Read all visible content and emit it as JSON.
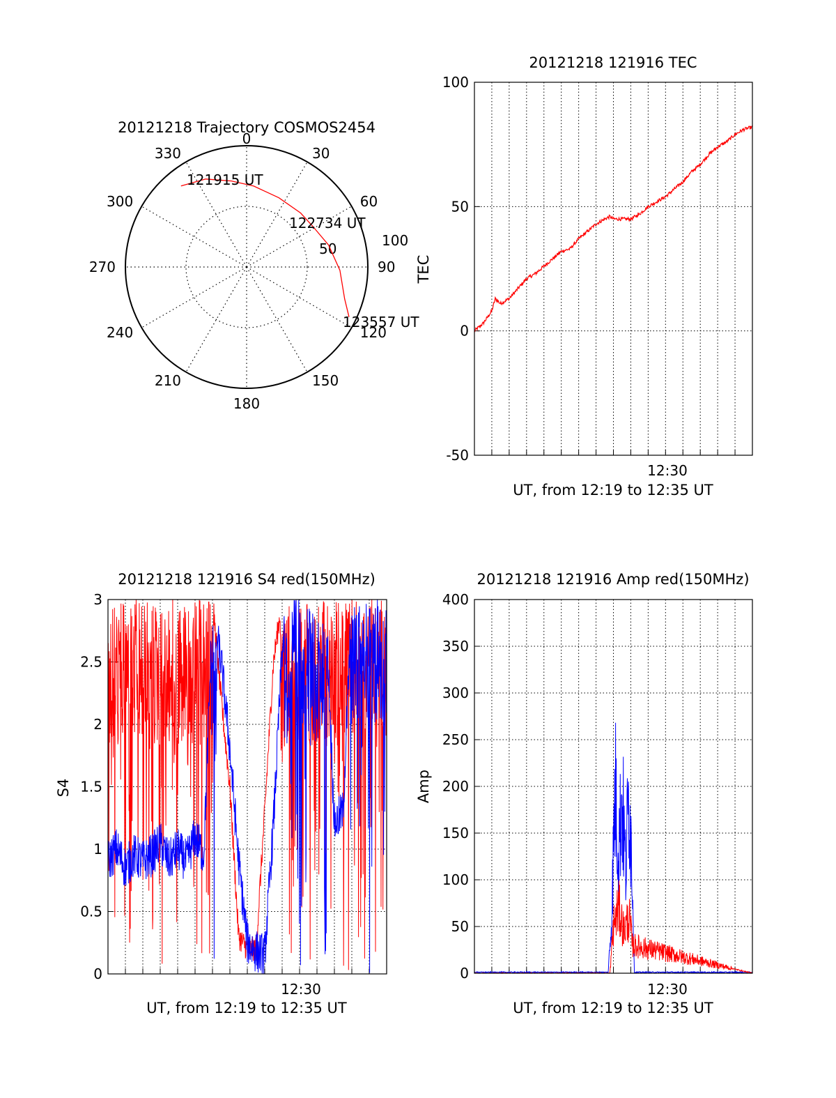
{
  "chart_data": [
    {
      "type": "polar",
      "title": "20121218 Trajectory COSMOS2454",
      "angle_labels": [
        "0",
        "30",
        "60",
        "90",
        "120",
        "150",
        "180",
        "210",
        "240",
        "270",
        "300",
        "330"
      ],
      "radial_labels": [
        "50",
        "100"
      ],
      "radial_range": [
        0,
        100
      ],
      "grid": true,
      "trajectory": [
        {
          "az": 321,
          "elev": 14
        },
        {
          "az": 335,
          "elev": 20
        },
        {
          "az": 350,
          "elev": 28
        },
        {
          "az": 5,
          "elev": 33
        },
        {
          "az": 25,
          "elev": 37
        },
        {
          "az": 45,
          "elev": 37
        },
        {
          "az": 58,
          "elev": 36
        },
        {
          "az": 75,
          "elev": 30
        },
        {
          "az": 92,
          "elev": 23
        },
        {
          "az": 108,
          "elev": 15
        },
        {
          "az": 116,
          "elev": 6
        }
      ],
      "annotations": [
        "121915 UT",
        "122734 UT",
        "123557 UT"
      ],
      "line_color": "#ff0000"
    },
    {
      "type": "line",
      "title": "20121218 121916 TEC",
      "xlabel": "UT, from 12:19 to 12:35 UT",
      "ylabel": "TEC",
      "xlim": [
        0,
        16
      ],
      "ylim": [
        -50,
        100
      ],
      "yticks": [
        "100",
        "50",
        "0",
        "-50"
      ],
      "xtick_labels": [
        "12:30"
      ],
      "grid": true,
      "series": [
        {
          "color": "#ff0000",
          "x": [
            0,
            0.5,
            1,
            1.2,
            1.5,
            2,
            2.5,
            3,
            3.5,
            4,
            4.5,
            5,
            5.5,
            6,
            6.5,
            7,
            7.5,
            7.8,
            8,
            8.5,
            9,
            9.5,
            10,
            10.5,
            11,
            11.5,
            12,
            12.5,
            13,
            13.5,
            14,
            14.5,
            15,
            15.5,
            16
          ],
          "y": [
            0,
            3,
            8,
            13,
            11,
            13,
            17,
            21,
            23,
            26,
            29,
            32,
            33,
            37,
            40,
            43,
            45,
            46,
            45,
            45,
            45,
            47,
            50,
            52,
            54,
            57,
            60,
            64,
            67,
            71,
            74,
            76,
            79,
            81,
            82
          ]
        }
      ]
    },
    {
      "type": "line",
      "title": "20121218 121916 S4 red(150MHz)",
      "xlabel": "UT, from 12:19 to 12:35 UT",
      "ylabel": "S4",
      "xlim": [
        0,
        16
      ],
      "ylim": [
        0,
        3
      ],
      "yticks": [
        "3",
        "2.5",
        "2",
        "1.5",
        "1",
        "0.5",
        "0"
      ],
      "xtick_labels": [
        "12:30"
      ],
      "grid": true,
      "series": [
        {
          "color": "#ff0000",
          "x": [
            0,
            0.5,
            1,
            1.5,
            2,
            2.5,
            3,
            3.5,
            4,
            4.5,
            5,
            5.5,
            6,
            6.5,
            7,
            7.5,
            8,
            8.5,
            9,
            9.5,
            10,
            10.5,
            11,
            11.5,
            12,
            12.5,
            13,
            13.5,
            14,
            14.5,
            15,
            15.5,
            16
          ],
          "y": [
            3,
            3,
            3,
            3,
            3,
            3,
            3,
            3,
            3,
            3,
            3,
            3,
            3,
            2.2,
            1.5,
            0.3,
            0.2,
            0.2,
            1.3,
            2.5,
            3,
            3,
            3,
            3,
            3,
            3,
            3,
            3,
            3,
            3,
            3,
            3,
            3
          ],
          "fill_range": [
            0,
            3
          ]
        },
        {
          "color": "#0000ff",
          "x": [
            0,
            0.5,
            1,
            1.5,
            2,
            2.5,
            3,
            3.5,
            4,
            4.5,
            5,
            5.5,
            6,
            6.5,
            7,
            7.5,
            8,
            8.5,
            9,
            9.5,
            10,
            10.5,
            11,
            11.5,
            12,
            12.5,
            13,
            13.5,
            14,
            14.5,
            15,
            15.5,
            16
          ],
          "y": [
            0.9,
            1.0,
            0.85,
            0.95,
            0.9,
            0.95,
            1.05,
            0.9,
            1.0,
            0.9,
            1.1,
            0.95,
            2.9,
            2.5,
            1.8,
            0.9,
            0.25,
            0.18,
            0.15,
            1.2,
            2.6,
            3,
            3,
            3,
            2.8,
            3,
            1.2,
            1.3,
            3,
            3,
            3,
            3,
            3
          ]
        }
      ]
    },
    {
      "type": "line",
      "title": "20121218 121916 Amp red(150MHz)",
      "xlabel": "UT, from 12:19 to 12:35 UT",
      "ylabel": "Amp",
      "xlim": [
        0,
        16
      ],
      "ylim": [
        0,
        400
      ],
      "yticks": [
        "400",
        "350",
        "300",
        "250",
        "200",
        "150",
        "100",
        "50",
        "0"
      ],
      "xtick_labels": [
        "12:30"
      ],
      "grid": true,
      "series": [
        {
          "color": "#0000ff",
          "x": [
            0,
            7.7,
            7.9,
            8.1,
            8.3,
            8.5,
            8.7,
            8.9,
            9.1,
            9.2,
            16
          ],
          "y": [
            1,
            1,
            60,
            200,
            130,
            190,
            110,
            195,
            100,
            1,
            1
          ],
          "fill_range": [
            40,
            200
          ]
        },
        {
          "color": "#ff0000",
          "x": [
            0,
            7.8,
            8.0,
            8.3,
            8.6,
            8.9,
            9.1,
            16
          ],
          "y": [
            0,
            0,
            50,
            70,
            45,
            60,
            30,
            0
          ]
        }
      ]
    }
  ]
}
